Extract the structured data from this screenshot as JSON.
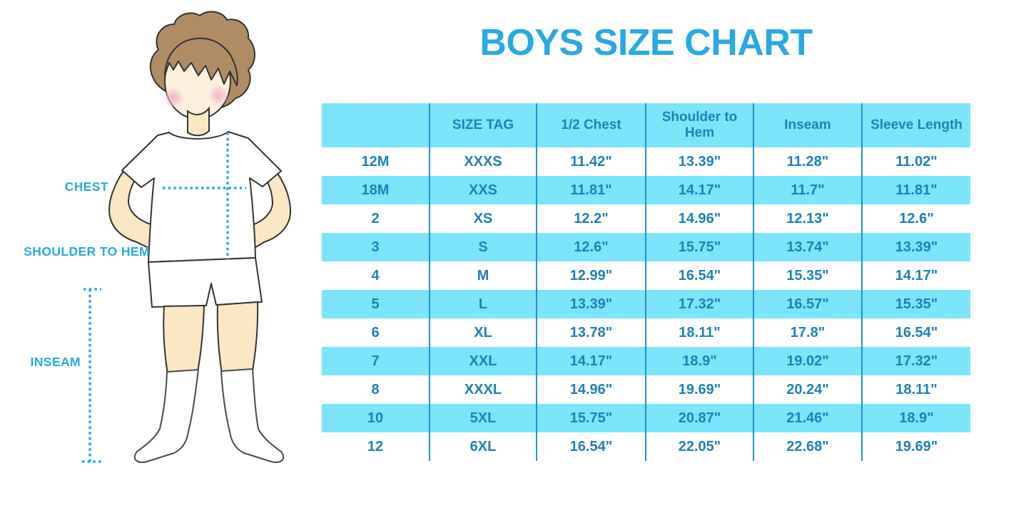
{
  "title": "BOYS SIZE CHART",
  "figure": {
    "labels": {
      "chest": "CHEST",
      "shoulder_to_hem": "SHOULDER TO HEM",
      "inseam": "INSEAM"
    }
  },
  "chart_data": {
    "type": "table",
    "title": "BOYS SIZE CHART",
    "columns": [
      "",
      "SIZE TAG",
      "1/2 Chest",
      "Shoulder to Hem",
      "Inseam",
      "Sleeve Length"
    ],
    "rows": [
      [
        "12M",
        "XXXS",
        "11.42\"",
        "13.39\"",
        "11.28\"",
        "11.02\""
      ],
      [
        "18M",
        "XXS",
        "11.81\"",
        "14.17\"",
        "11.7\"",
        "11.81\""
      ],
      [
        "2",
        "XS",
        "12.2\"",
        "14.96\"",
        "12.13\"",
        "12.6\""
      ],
      [
        "3",
        "S",
        "12.6\"",
        "15.75\"",
        "13.74\"",
        "13.39\""
      ],
      [
        "4",
        "M",
        "12.99\"",
        "16.54\"",
        "15.35\"",
        "14.17\""
      ],
      [
        "5",
        "L",
        "13.39\"",
        "17.32\"",
        "16.57\"",
        "15.35\""
      ],
      [
        "6",
        "XL",
        "13.78\"",
        "18.11\"",
        "17.8\"",
        "16.54\""
      ],
      [
        "7",
        "XXL",
        "14.17\"",
        "18.9\"",
        "19.02\"",
        "17.32\""
      ],
      [
        "8",
        "XXXL",
        "14.96\"",
        "19.69\"",
        "20.24\"",
        "18.11\""
      ],
      [
        "10",
        "5XL",
        "15.75\"",
        "20.87\"",
        "21.46\"",
        "18.9\""
      ],
      [
        "12",
        "6XL",
        "16.54\"",
        "22.05\"",
        "22.68\"",
        "19.69\""
      ]
    ],
    "row_striping": "white / light-cyan alternating, header light-cyan",
    "legend_position": "none",
    "grid": "vertical column dividers only"
  },
  "colors": {
    "accent_blue": "#29a9e1",
    "table_fill": "#7ce4fb",
    "table_line": "#2095c8",
    "table_text": "#1e81b7",
    "skin": "#fbe7c2",
    "face_skin": "#fdf0dc",
    "hair": "#b18c63",
    "blush": "#f2a9bd",
    "outline": "#333333"
  }
}
